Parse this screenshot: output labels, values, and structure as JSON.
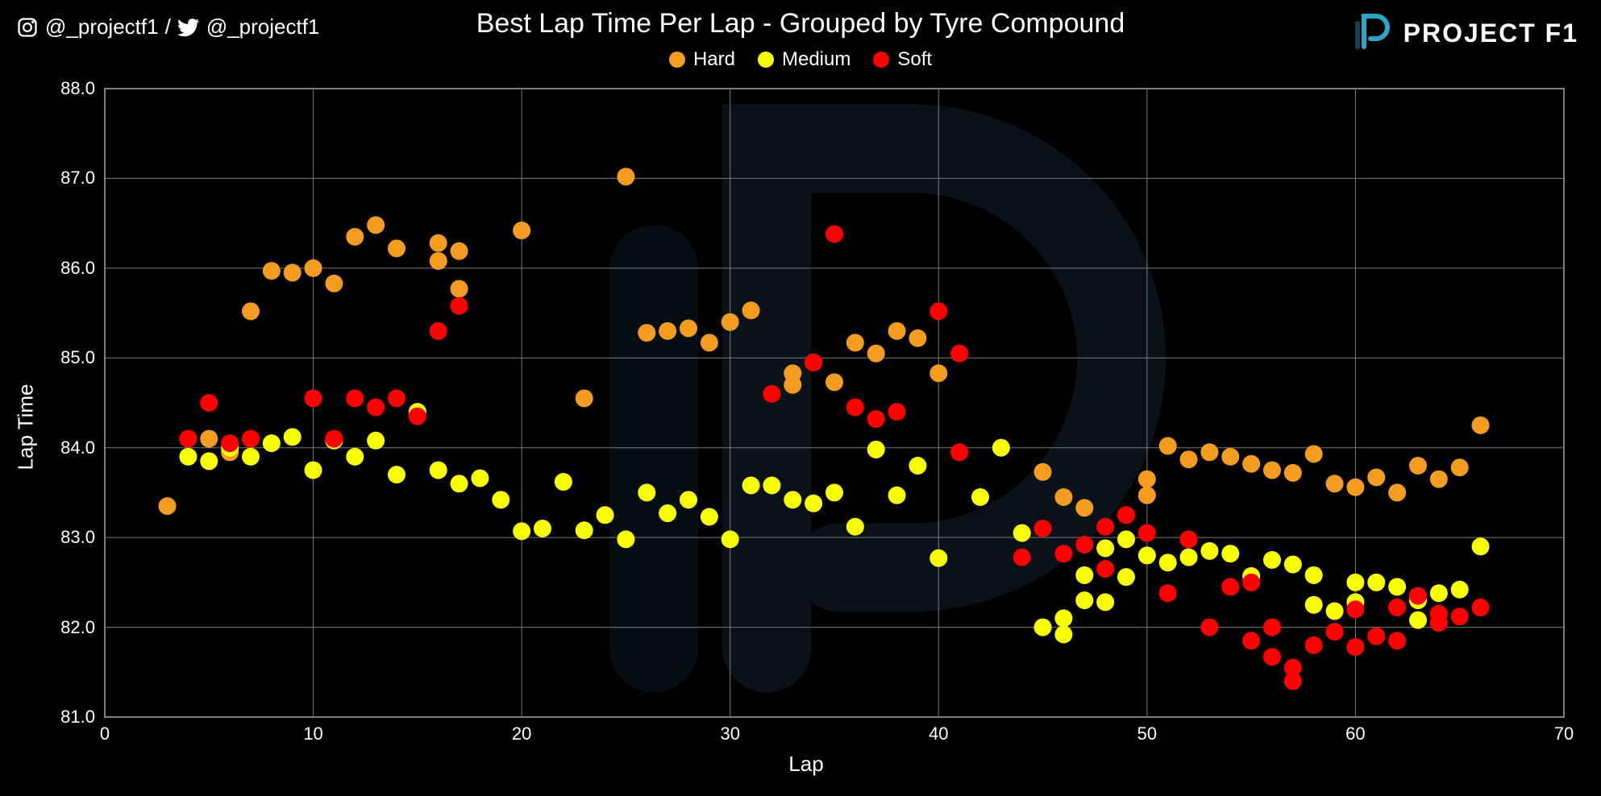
{
  "social": {
    "instagram_handle": "@_projectf1",
    "separator": "/",
    "twitter_handle": "@_projectf1"
  },
  "brand": {
    "text": "PROJECT F1",
    "logo_stroke": "#2aa6c6",
    "logo_fill": "#1f3d52"
  },
  "chart": {
    "type": "scatter",
    "title": "Best Lap Time Per Lap - Grouped by Tyre Compound",
    "title_fontsize": 34,
    "xlabel": "Lap",
    "ylabel": "Lap Time",
    "label_fontsize": 26,
    "tick_fontsize": 22,
    "background_color": "#000000",
    "plot_background": "#000000",
    "grid_color": "#7a7a7a",
    "grid_width": 1,
    "axis_color": "#ffffff",
    "text_color": "#ffffff",
    "marker_radius": 11,
    "xlim": [
      0,
      70
    ],
    "ylim": [
      81.0,
      88.0
    ],
    "xticks": [
      0,
      10,
      20,
      30,
      40,
      50,
      60,
      70
    ],
    "yticks": [
      81.0,
      82.0,
      83.0,
      84.0,
      85.0,
      86.0,
      87.0,
      88.0
    ],
    "ytick_format": "fixed1",
    "legend": {
      "position": "top-center",
      "fontsize": 24,
      "items": [
        {
          "label": "Hard",
          "color": "#f39c1f"
        },
        {
          "label": "Medium",
          "color": "#f7ff00"
        },
        {
          "label": "Soft",
          "color": "#ff0000"
        }
      ]
    },
    "watermark": {
      "stroke": "#1f3d52",
      "accent": "#123240",
      "opacity": 0.3
    },
    "series": [
      {
        "name": "Hard",
        "color": "#f39c1f",
        "points": [
          [
            3,
            83.35
          ],
          [
            5,
            84.1
          ],
          [
            6,
            83.95
          ],
          [
            7,
            85.52
          ],
          [
            8,
            85.97
          ],
          [
            9,
            85.95
          ],
          [
            10,
            86.0
          ],
          [
            11,
            85.83
          ],
          [
            12,
            86.35
          ],
          [
            13,
            86.48
          ],
          [
            14,
            86.22
          ],
          [
            16,
            86.28
          ],
          [
            16,
            86.08
          ],
          [
            17,
            85.77
          ],
          [
            17,
            86.19
          ],
          [
            20,
            86.42
          ],
          [
            23,
            84.55
          ],
          [
            25,
            87.02
          ],
          [
            26,
            85.28
          ],
          [
            27,
            85.3
          ],
          [
            28,
            85.33
          ],
          [
            29,
            85.17
          ],
          [
            30,
            85.4
          ],
          [
            31,
            85.53
          ],
          [
            33,
            84.83
          ],
          [
            33,
            84.7
          ],
          [
            34,
            84.95
          ],
          [
            35,
            84.73
          ],
          [
            36,
            85.17
          ],
          [
            37,
            85.05
          ],
          [
            38,
            85.3
          ],
          [
            39,
            85.22
          ],
          [
            40,
            84.83
          ],
          [
            45,
            83.73
          ],
          [
            46,
            83.45
          ],
          [
            47,
            83.33
          ],
          [
            50,
            83.65
          ],
          [
            50,
            83.47
          ],
          [
            51,
            84.02
          ],
          [
            52,
            83.87
          ],
          [
            53,
            83.95
          ],
          [
            54,
            83.9
          ],
          [
            55,
            83.82
          ],
          [
            56,
            83.75
          ],
          [
            57,
            83.72
          ],
          [
            58,
            83.93
          ],
          [
            59,
            83.6
          ],
          [
            60,
            83.56
          ],
          [
            61,
            83.67
          ],
          [
            62,
            83.5
          ],
          [
            63,
            83.8
          ],
          [
            64,
            83.65
          ],
          [
            65,
            83.78
          ],
          [
            66,
            84.25
          ]
        ]
      },
      {
        "name": "Medium",
        "color": "#f7ff00",
        "points": [
          [
            4,
            83.9
          ],
          [
            5,
            83.85
          ],
          [
            6,
            84.0
          ],
          [
            7,
            83.9
          ],
          [
            8,
            84.05
          ],
          [
            9,
            84.12
          ],
          [
            10,
            83.75
          ],
          [
            11,
            84.08
          ],
          [
            12,
            83.9
          ],
          [
            13,
            84.08
          ],
          [
            14,
            83.7
          ],
          [
            15,
            84.4
          ],
          [
            16,
            83.75
          ],
          [
            17,
            83.6
          ],
          [
            18,
            83.66
          ],
          [
            19,
            83.42
          ],
          [
            20,
            83.07
          ],
          [
            21,
            83.1
          ],
          [
            22,
            83.62
          ],
          [
            23,
            83.08
          ],
          [
            24,
            83.25
          ],
          [
            25,
            82.98
          ],
          [
            26,
            83.5
          ],
          [
            27,
            83.27
          ],
          [
            28,
            83.42
          ],
          [
            29,
            83.23
          ],
          [
            30,
            82.98
          ],
          [
            31,
            83.58
          ],
          [
            32,
            83.58
          ],
          [
            33,
            83.42
          ],
          [
            34,
            83.38
          ],
          [
            35,
            83.5
          ],
          [
            36,
            83.12
          ],
          [
            37,
            83.98
          ],
          [
            38,
            83.47
          ],
          [
            39,
            83.8
          ],
          [
            40,
            82.77
          ],
          [
            42,
            83.45
          ],
          [
            43,
            84.0
          ],
          [
            44,
            83.05
          ],
          [
            45,
            82.0
          ],
          [
            46,
            82.1
          ],
          [
            46,
            81.92
          ],
          [
            47,
            82.58
          ],
          [
            47,
            82.3
          ],
          [
            48,
            82.88
          ],
          [
            48,
            82.28
          ],
          [
            49,
            82.98
          ],
          [
            49,
            82.56
          ],
          [
            50,
            82.8
          ],
          [
            51,
            82.72
          ],
          [
            52,
            82.78
          ],
          [
            53,
            82.85
          ],
          [
            54,
            82.82
          ],
          [
            55,
            82.57
          ],
          [
            56,
            82.75
          ],
          [
            57,
            82.7
          ],
          [
            58,
            82.25
          ],
          [
            58,
            82.58
          ],
          [
            59,
            82.18
          ],
          [
            60,
            82.5
          ],
          [
            60,
            82.28
          ],
          [
            61,
            82.5
          ],
          [
            62,
            82.45
          ],
          [
            63,
            82.3
          ],
          [
            63,
            82.08
          ],
          [
            64,
            82.38
          ],
          [
            65,
            82.42
          ],
          [
            66,
            82.9
          ]
        ]
      },
      {
        "name": "Soft",
        "color": "#ff0000",
        "points": [
          [
            4,
            84.1
          ],
          [
            5,
            84.5
          ],
          [
            6,
            84.05
          ],
          [
            7,
            84.1
          ],
          [
            10,
            84.55
          ],
          [
            11,
            84.1
          ],
          [
            12,
            84.55
          ],
          [
            13,
            84.45
          ],
          [
            14,
            84.55
          ],
          [
            15,
            84.35
          ],
          [
            16,
            85.3
          ],
          [
            17,
            85.58
          ],
          [
            32,
            84.6
          ],
          [
            34,
            84.95
          ],
          [
            35,
            86.38
          ],
          [
            36,
            84.45
          ],
          [
            37,
            84.32
          ],
          [
            38,
            84.4
          ],
          [
            40,
            85.52
          ],
          [
            41,
            85.05
          ],
          [
            41,
            83.95
          ],
          [
            44,
            82.78
          ],
          [
            45,
            83.1
          ],
          [
            46,
            82.82
          ],
          [
            47,
            82.92
          ],
          [
            48,
            83.12
          ],
          [
            48,
            82.65
          ],
          [
            49,
            83.25
          ],
          [
            50,
            83.05
          ],
          [
            51,
            82.38
          ],
          [
            52,
            82.98
          ],
          [
            53,
            82.0
          ],
          [
            54,
            82.45
          ],
          [
            55,
            81.85
          ],
          [
            55,
            82.5
          ],
          [
            56,
            81.67
          ],
          [
            56,
            82.0
          ],
          [
            57,
            81.55
          ],
          [
            57,
            81.4
          ],
          [
            58,
            81.8
          ],
          [
            59,
            81.95
          ],
          [
            60,
            81.78
          ],
          [
            60,
            82.2
          ],
          [
            61,
            81.9
          ],
          [
            62,
            82.22
          ],
          [
            62,
            81.85
          ],
          [
            63,
            82.35
          ],
          [
            64,
            82.05
          ],
          [
            64,
            82.15
          ],
          [
            65,
            82.12
          ],
          [
            66,
            82.22
          ]
        ]
      }
    ]
  }
}
